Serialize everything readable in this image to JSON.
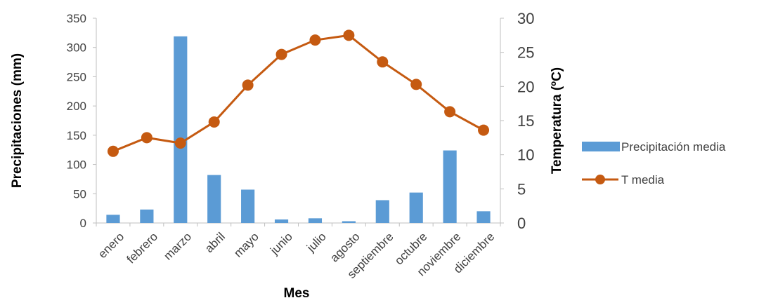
{
  "chart_data": {
    "type": "bar",
    "categories": [
      "enero",
      "febrero",
      "marzo",
      "abril",
      "mayo",
      "junio",
      "julio",
      "agosto",
      "septiembre",
      "octubre",
      "noviembre",
      "diciembre"
    ],
    "series": [
      {
        "name": "Precipitación media",
        "type": "bar",
        "axis": "left",
        "color": "#5B9BD5",
        "values": [
          14,
          23,
          319,
          82,
          57,
          6,
          8,
          3,
          39,
          52,
          124,
          20
        ]
      },
      {
        "name": "T media",
        "type": "line",
        "axis": "right",
        "color": "#C55A11",
        "values": [
          10.5,
          12.5,
          11.7,
          14.8,
          20.2,
          24.7,
          26.8,
          27.5,
          23.6,
          20.3,
          16.3,
          13.6
        ]
      }
    ],
    "xlabel": "Mes",
    "ylabel": "Precipitaciones (mm)",
    "y2label": "Temperatura (ºC)",
    "ylim": [
      0,
      350
    ],
    "y2lim": [
      0,
      30
    ],
    "yticks": [
      "0",
      "50",
      "100",
      "150",
      "200",
      "250",
      "300",
      "350"
    ],
    "y2ticks": [
      "0",
      "5",
      "10",
      "15",
      "20",
      "25",
      "30"
    ],
    "grid": false,
    "legend_position": "right"
  }
}
